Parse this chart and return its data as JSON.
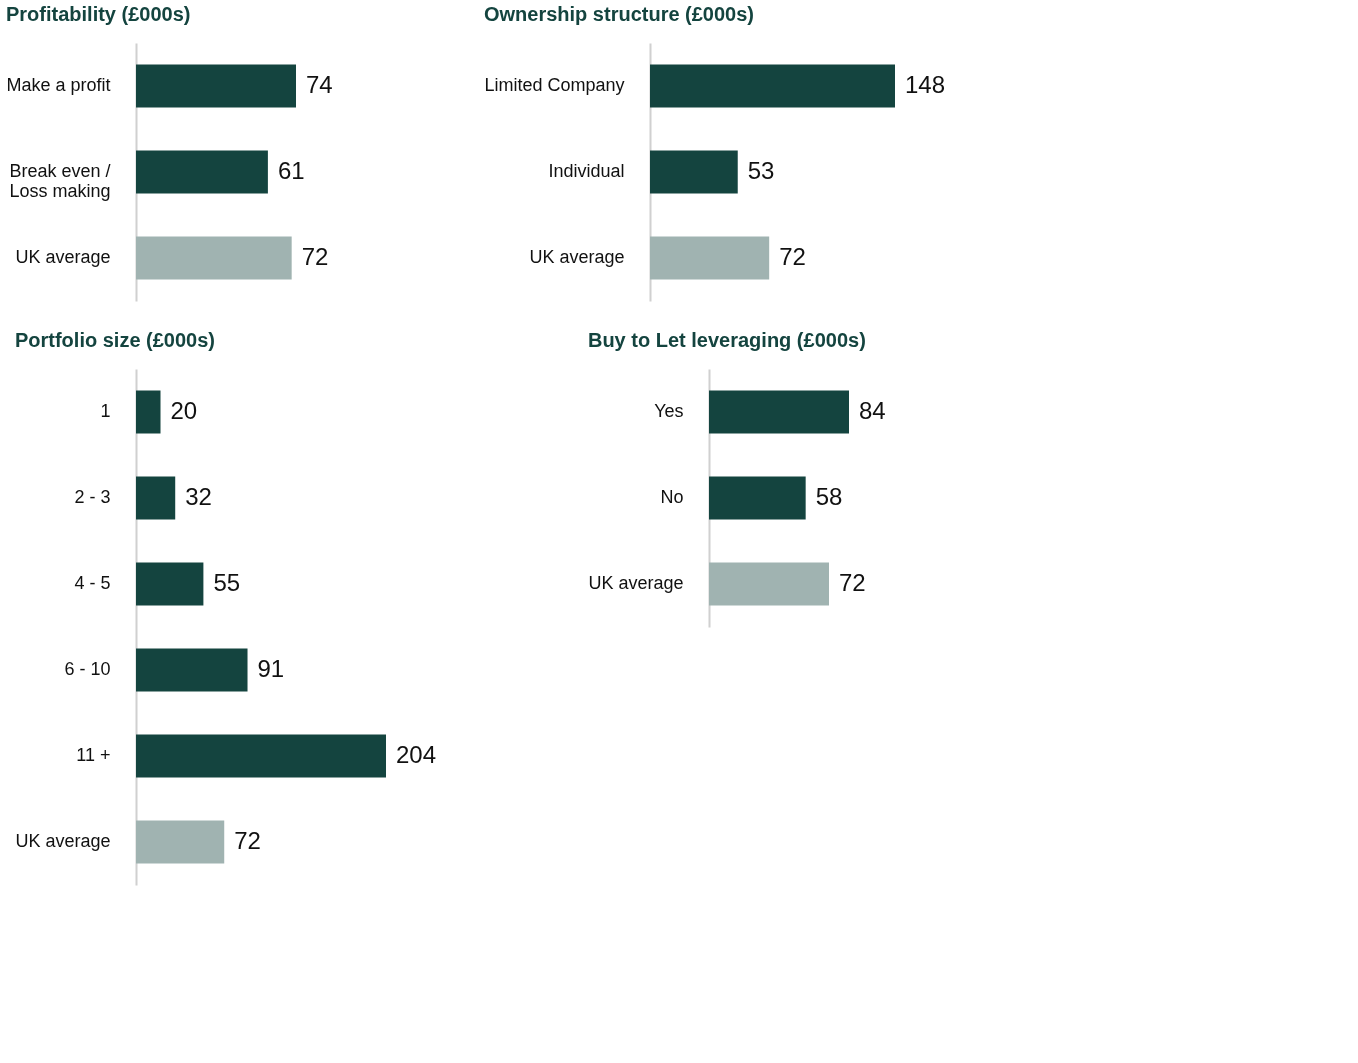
{
  "chart_data": [
    {
      "type": "bar",
      "orientation": "horizontal",
      "title": "Profitability (£000s)",
      "categories": [
        "Make a profit",
        "Break even /\nLoss making",
        "UK average"
      ],
      "values": [
        74,
        61,
        72
      ],
      "colors": [
        "#14443f",
        "#14443f",
        "#a0b3b1"
      ],
      "data_labels": true,
      "tick_labels": "y"
    },
    {
      "type": "bar",
      "orientation": "horizontal",
      "title": "Ownership structure (£000s)",
      "categories": [
        "Limited Company",
        "Individual",
        "UK average"
      ],
      "values": [
        148,
        53,
        72
      ],
      "colors": [
        "#14443f",
        "#14443f",
        "#a0b3b1"
      ],
      "data_labels": true,
      "tick_labels": "y"
    },
    {
      "type": "bar",
      "orientation": "horizontal",
      "title": "Portfolio size (£000s)",
      "categories": [
        "1",
        "2 - 3",
        "4 - 5",
        "6 - 10",
        "11 +",
        "UK average"
      ],
      "values": [
        20,
        32,
        55,
        91,
        204,
        72
      ],
      "colors": [
        "#14443f",
        "#14443f",
        "#14443f",
        "#14443f",
        "#14443f",
        "#a0b3b1"
      ],
      "data_labels": true,
      "tick_labels": "y"
    },
    {
      "type": "bar",
      "orientation": "horizontal",
      "title": "Buy to Let leveraging (£000s)",
      "categories": [
        "Yes",
        "No",
        "UK average"
      ],
      "values": [
        84,
        58,
        72
      ],
      "colors": [
        "#14443f",
        "#14443f",
        "#a0b3b1"
      ],
      "data_labels": true,
      "tick_labels": "y"
    }
  ]
}
